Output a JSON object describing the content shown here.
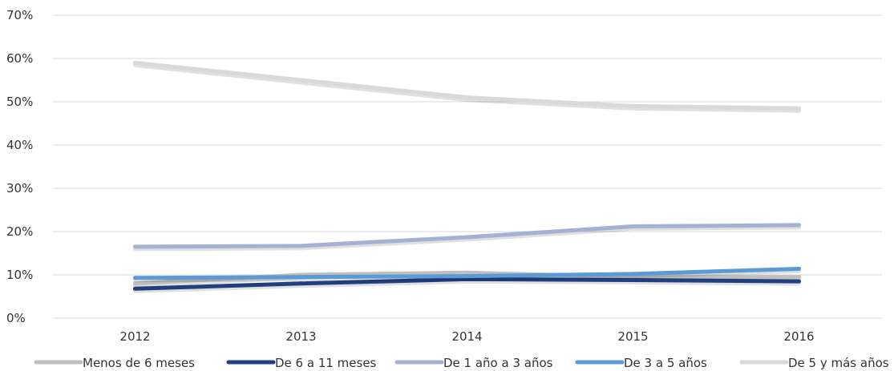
{
  "chart_data": {
    "type": "line",
    "title": "",
    "xlabel": "",
    "ylabel": "",
    "categories": [
      "2012",
      "2013",
      "2014",
      "2015",
      "2016"
    ],
    "ylim": [
      0,
      70
    ],
    "y_ticks": [
      0,
      10,
      20,
      30,
      40,
      50,
      60,
      70
    ],
    "y_tick_labels": [
      "0%",
      "10%",
      "20%",
      "30%",
      "40%",
      "50%",
      "60%",
      "70%"
    ],
    "grid": "horizontal",
    "legend_position": "bottom",
    "series": [
      {
        "name": "Menos de 6 meses",
        "color": "#bfbfbf",
        "values": [
          8,
          10,
          10.5,
          9.5,
          9.5
        ]
      },
      {
        "name": "De 6 a 11 meses",
        "color": "#203f7f",
        "values": [
          6.8,
          8,
          9,
          8.8,
          8.5
        ]
      },
      {
        "name": "De 1 año a 3 años",
        "color": "#a5b0d2",
        "values": [
          16.5,
          16.7,
          18.7,
          21.2,
          21.5
        ]
      },
      {
        "name": "De 3 a 5 años",
        "color": "#5b9bd5",
        "values": [
          9.3,
          9.5,
          9.7,
          10.2,
          11.4
        ]
      },
      {
        "name": "De 5 y más años",
        "color": "#d9d9d9",
        "values": [
          59,
          55,
          51,
          49,
          48.5
        ]
      }
    ]
  }
}
